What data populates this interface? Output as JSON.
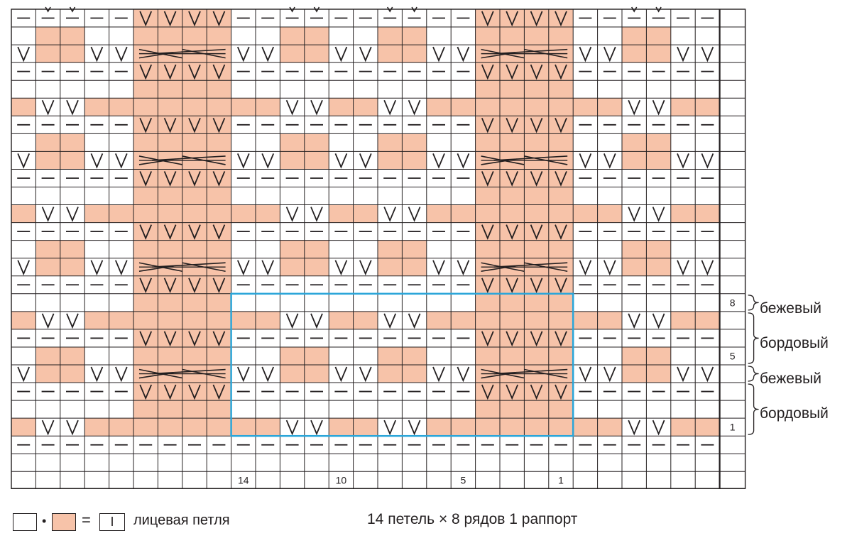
{
  "chart": {
    "columns": 29,
    "rows": 26,
    "colors": {
      "peach": "#f7c3a9",
      "white": "#ffffff",
      "grid": "#231f20",
      "repeat_box": "#2ba6d9"
    },
    "row_patterns": [
      [
        "D",
        "DV",
        "DV",
        "D",
        "D",
        "V",
        "V",
        "V",
        "V",
        "D",
        "D",
        "DV",
        "DV",
        "D",
        "D",
        "DV",
        "DV",
        "D",
        "D",
        "V",
        "V",
        "V",
        "V",
        "D",
        "D",
        "DV",
        "DV",
        "D",
        "D"
      ],
      [
        "E",
        "P",
        "P",
        "E",
        "E",
        "P",
        "P",
        "P",
        "P",
        "E",
        "E",
        "P",
        "P",
        "E",
        "E",
        "P",
        "P",
        "E",
        "E",
        "P",
        "P",
        "P",
        "P",
        "E",
        "E",
        "P",
        "P",
        "E",
        "E"
      ],
      [
        "V",
        "P",
        "P",
        "V",
        "V",
        "P",
        "C",
        "C",
        "P",
        "V",
        "V",
        "P",
        "P",
        "V",
        "V",
        "P",
        "P",
        "V",
        "V",
        "P",
        "C",
        "C",
        "P",
        "V",
        "V",
        "P",
        "P",
        "V",
        "V"
      ],
      [
        "D",
        "D",
        "D",
        "D",
        "D",
        "V",
        "V",
        "V",
        "V",
        "D",
        "D",
        "D",
        "D",
        "D",
        "D",
        "D",
        "D",
        "D",
        "D",
        "V",
        "V",
        "V",
        "V",
        "D",
        "D",
        "D",
        "D",
        "D",
        "D"
      ],
      [
        "E",
        "E",
        "E",
        "E",
        "E",
        "P",
        "P",
        "P",
        "P",
        "E",
        "E",
        "E",
        "E",
        "E",
        "E",
        "E",
        "E",
        "E",
        "E",
        "P",
        "P",
        "P",
        "P",
        "E",
        "E",
        "E",
        "E",
        "E",
        "E"
      ],
      [
        "P",
        "V",
        "V",
        "P",
        "P",
        "P",
        "P",
        "P",
        "P",
        "P",
        "P",
        "V",
        "V",
        "P",
        "P",
        "V",
        "V",
        "P",
        "P",
        "P",
        "P",
        "P",
        "P",
        "P",
        "P",
        "V",
        "V",
        "P",
        "P"
      ],
      [
        "D",
        "D",
        "D",
        "D",
        "D",
        "V",
        "V",
        "V",
        "V",
        "D",
        "D",
        "D",
        "D",
        "D",
        "D",
        "D",
        "D",
        "D",
        "D",
        "V",
        "V",
        "V",
        "V",
        "D",
        "D",
        "D",
        "D",
        "D",
        "D"
      ],
      [
        "E",
        "P",
        "P",
        "E",
        "E",
        "P",
        "P",
        "P",
        "P",
        "E",
        "E",
        "P",
        "P",
        "E",
        "E",
        "P",
        "P",
        "E",
        "E",
        "P",
        "P",
        "P",
        "P",
        "E",
        "E",
        "P",
        "P",
        "E",
        "E"
      ],
      [
        "V",
        "P",
        "P",
        "V",
        "V",
        "P",
        "C",
        "C",
        "P",
        "V",
        "V",
        "P",
        "P",
        "V",
        "V",
        "P",
        "P",
        "V",
        "V",
        "P",
        "C",
        "C",
        "P",
        "V",
        "V",
        "P",
        "P",
        "V",
        "V"
      ],
      [
        "D",
        "D",
        "D",
        "D",
        "D",
        "V",
        "V",
        "V",
        "V",
        "D",
        "D",
        "D",
        "D",
        "D",
        "D",
        "D",
        "D",
        "D",
        "D",
        "V",
        "V",
        "V",
        "V",
        "D",
        "D",
        "D",
        "D",
        "D",
        "D"
      ],
      [
        "E",
        "E",
        "E",
        "E",
        "E",
        "P",
        "P",
        "P",
        "P",
        "E",
        "E",
        "E",
        "E",
        "E",
        "E",
        "E",
        "E",
        "E",
        "E",
        "P",
        "P",
        "P",
        "P",
        "E",
        "E",
        "E",
        "E",
        "E",
        "E"
      ],
      [
        "P",
        "V",
        "V",
        "P",
        "P",
        "P",
        "P",
        "P",
        "P",
        "P",
        "P",
        "V",
        "V",
        "P",
        "P",
        "V",
        "V",
        "P",
        "P",
        "P",
        "P",
        "P",
        "P",
        "P",
        "P",
        "V",
        "V",
        "P",
        "P"
      ],
      [
        "D",
        "D",
        "D",
        "D",
        "D",
        "V",
        "V",
        "V",
        "V",
        "D",
        "D",
        "D",
        "D",
        "D",
        "D",
        "D",
        "D",
        "D",
        "D",
        "V",
        "V",
        "V",
        "V",
        "D",
        "D",
        "D",
        "D",
        "D",
        "D"
      ],
      [
        "E",
        "P",
        "P",
        "E",
        "E",
        "P",
        "P",
        "P",
        "P",
        "E",
        "E",
        "P",
        "P",
        "E",
        "E",
        "P",
        "P",
        "E",
        "E",
        "P",
        "P",
        "P",
        "P",
        "E",
        "E",
        "P",
        "P",
        "E",
        "E"
      ],
      [
        "V",
        "P",
        "P",
        "V",
        "V",
        "P",
        "C",
        "C",
        "P",
        "V",
        "V",
        "P",
        "P",
        "V",
        "V",
        "P",
        "P",
        "V",
        "V",
        "P",
        "C",
        "C",
        "P",
        "V",
        "V",
        "P",
        "P",
        "V",
        "V"
      ],
      [
        "D",
        "D",
        "D",
        "D",
        "D",
        "V",
        "V",
        "V",
        "V",
        "D",
        "D",
        "D",
        "D",
        "D",
        "D",
        "D",
        "D",
        "D",
        "D",
        "V",
        "V",
        "V",
        "V",
        "D",
        "D",
        "D",
        "D",
        "D",
        "D"
      ],
      [
        "E",
        "E",
        "E",
        "E",
        "E",
        "P",
        "P",
        "P",
        "P",
        "E",
        "E",
        "E",
        "E",
        "E",
        "E",
        "E",
        "E",
        "E",
        "E",
        "P",
        "P",
        "P",
        "P",
        "E",
        "E",
        "E",
        "E",
        "E",
        "E"
      ],
      [
        "P",
        "V",
        "V",
        "P",
        "P",
        "P",
        "P",
        "P",
        "P",
        "P",
        "P",
        "V",
        "V",
        "P",
        "P",
        "V",
        "V",
        "P",
        "P",
        "P",
        "P",
        "P",
        "P",
        "P",
        "P",
        "V",
        "V",
        "P",
        "P"
      ],
      [
        "D",
        "D",
        "D",
        "D",
        "D",
        "V",
        "V",
        "V",
        "V",
        "D",
        "D",
        "D",
        "D",
        "D",
        "D",
        "D",
        "D",
        "D",
        "D",
        "V",
        "V",
        "V",
        "V",
        "D",
        "D",
        "D",
        "D",
        "D",
        "D"
      ],
      [
        "E",
        "P",
        "P",
        "E",
        "E",
        "P",
        "P",
        "P",
        "P",
        "E",
        "E",
        "P",
        "P",
        "E",
        "E",
        "P",
        "P",
        "E",
        "E",
        "P",
        "P",
        "P",
        "P",
        "E",
        "E",
        "P",
        "P",
        "E",
        "E"
      ],
      [
        "V",
        "P",
        "P",
        "V",
        "V",
        "P",
        "C",
        "C",
        "P",
        "V",
        "V",
        "P",
        "P",
        "V",
        "V",
        "P",
        "P",
        "V",
        "V",
        "P",
        "C",
        "C",
        "P",
        "V",
        "V",
        "P",
        "P",
        "V",
        "V"
      ],
      [
        "D",
        "D",
        "D",
        "D",
        "D",
        "V",
        "V",
        "V",
        "V",
        "D",
        "D",
        "D",
        "D",
        "D",
        "D",
        "D",
        "D",
        "D",
        "D",
        "V",
        "V",
        "V",
        "V",
        "D",
        "D",
        "D",
        "D",
        "D",
        "D"
      ],
      [
        "E",
        "E",
        "E",
        "E",
        "E",
        "P",
        "P",
        "P",
        "P",
        "E",
        "E",
        "E",
        "E",
        "E",
        "E",
        "E",
        "E",
        "E",
        "E",
        "P",
        "P",
        "P",
        "P",
        "E",
        "E",
        "E",
        "E",
        "E",
        "E"
      ],
      [
        "P",
        "V",
        "V",
        "P",
        "P",
        "P",
        "P",
        "P",
        "P",
        "P",
        "P",
        "V",
        "V",
        "P",
        "P",
        "V",
        "V",
        "P",
        "P",
        "P",
        "P",
        "P",
        "P",
        "P",
        "P",
        "V",
        "V",
        "P",
        "P"
      ],
      [
        "D",
        "D",
        "D",
        "D",
        "D",
        "D",
        "D",
        "D",
        "D",
        "D",
        "D",
        "D",
        "D",
        "D",
        "D",
        "D",
        "D",
        "D",
        "D",
        "D",
        "D",
        "D",
        "D",
        "D",
        "D",
        "D",
        "D",
        "D",
        "D"
      ],
      [
        "E",
        "E",
        "E",
        "E",
        "E",
        "E",
        "E",
        "E",
        "E",
        "E",
        "E",
        "E",
        "E",
        "E",
        "E",
        "E",
        "E",
        "E",
        "E",
        "E",
        "E",
        "E",
        "E",
        "E",
        "E",
        "E",
        "E",
        "E",
        "E"
      ]
    ],
    "row_numbers": [
      {
        "row": 8,
        "text": "8"
      },
      {
        "row": 5,
        "text": "5"
      },
      {
        "row": 1,
        "text": "1"
      }
    ],
    "stitch_numbers": [
      {
        "stitch": 14,
        "text": "14"
      },
      {
        "stitch": 10,
        "text": "10"
      },
      {
        "stitch": 5,
        "text": "5"
      },
      {
        "stitch": 1,
        "text": "1"
      }
    ],
    "repeat": {
      "first_stitch": 1,
      "last_stitch": 14,
      "first_row": 1,
      "last_row": 8
    }
  },
  "color_labels": [
    "бежевый",
    "бордовый",
    "бежевый",
    "бордовый"
  ],
  "legend": {
    "separator": "•",
    "equals": "=",
    "symbol_glyph": "I",
    "description": "лицевая петля"
  },
  "repeat_note": "14 петель × 8 рядов 1 раппорт"
}
